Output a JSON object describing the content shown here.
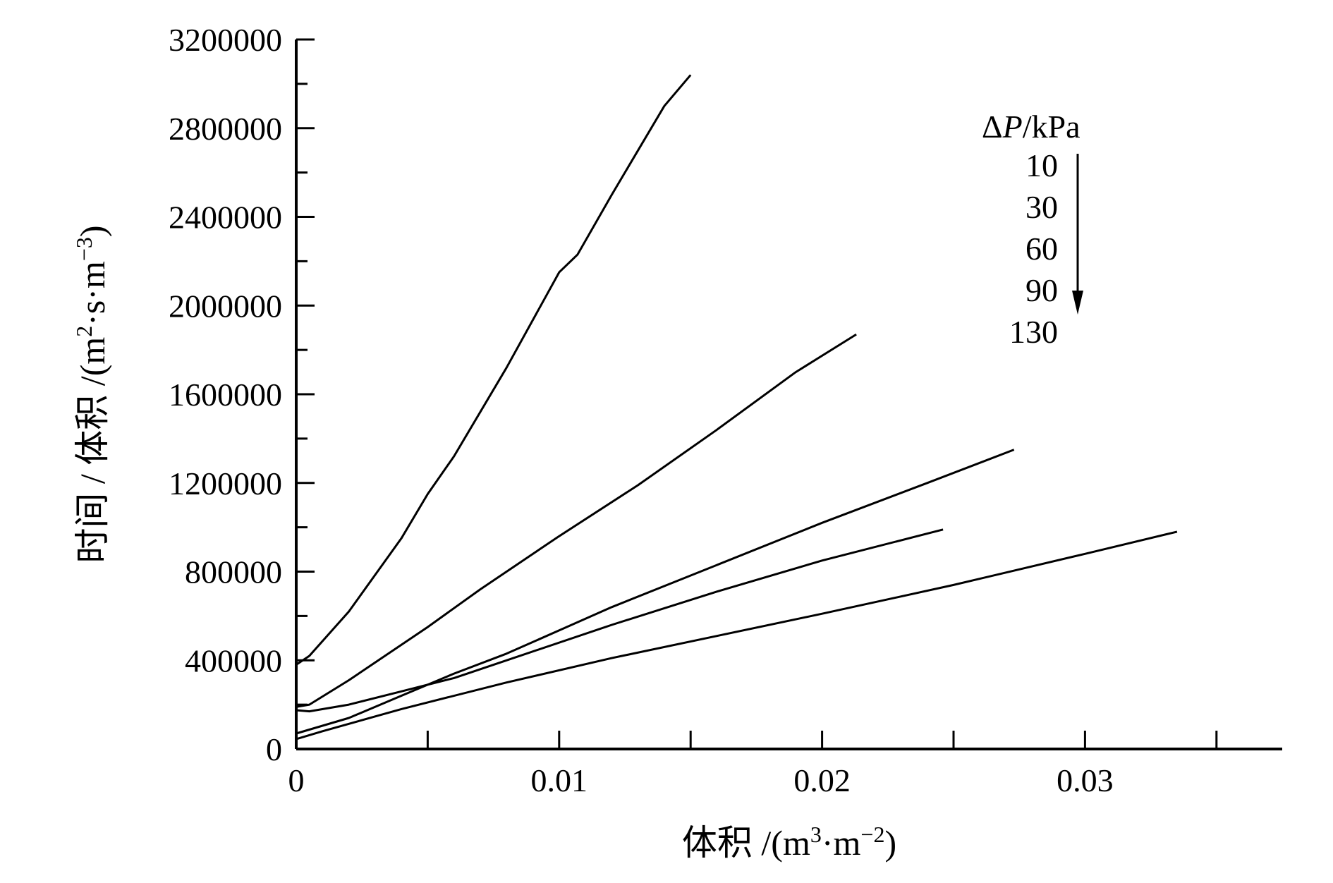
{
  "chart_data": {
    "type": "line",
    "xlabel": "体积 /(m³·m⁻²)",
    "xlabel_parts": {
      "base": "体积 /(m",
      "sup1": "3",
      "mid": "·m",
      "sup2": "−2",
      "end": ")"
    },
    "ylabel": "时间 / 体积 /(m²·s·m⁻³)",
    "ylabel_parts": {
      "base": "时间 / 体积 /(m",
      "sup1": "2",
      "mid": "·s·m",
      "sup2": "−3",
      "end": ")"
    },
    "xlim": [
      0,
      0.0375
    ],
    "ylim": [
      0,
      3200000
    ],
    "x_ticks": [
      0,
      0.005,
      0.01,
      0.015,
      0.02,
      0.025,
      0.03,
      0.035
    ],
    "x_tick_labels": [
      {
        "value": 0,
        "label": "0"
      },
      {
        "value": 0.01,
        "label": "0.01"
      },
      {
        "value": 0.02,
        "label": "0.02"
      },
      {
        "value": 0.03,
        "label": "0.03"
      }
    ],
    "y_ticks": [
      0,
      200000,
      400000,
      600000,
      800000,
      1000000,
      1200000,
      1400000,
      1600000,
      1800000,
      2000000,
      2200000,
      2400000,
      2600000,
      2800000,
      3000000,
      3200000
    ],
    "y_tick_labels": [
      {
        "value": 0,
        "label": "0"
      },
      {
        "value": 400000,
        "label": "400000"
      },
      {
        "value": 800000,
        "label": "800000"
      },
      {
        "value": 1200000,
        "label": "1200000"
      },
      {
        "value": 1600000,
        "label": "1600000"
      },
      {
        "value": 2000000,
        "label": "2000000"
      },
      {
        "value": 2400000,
        "label": "2400000"
      },
      {
        "value": 2800000,
        "label": "2800000"
      },
      {
        "value": 3200000,
        "label": "3200000"
      }
    ],
    "grid": false,
    "legend": {
      "placement": "top-right",
      "title_italic": "P",
      "title_prefix": "Δ",
      "title_suffix": "/kPa",
      "entries": [
        "10",
        "30",
        "60",
        "90",
        "130"
      ],
      "arrow": "down"
    },
    "series": [
      {
        "pressure": "10",
        "x": [
          0,
          0.0005,
          0.002,
          0.004,
          0.005,
          0.006,
          0.008,
          0.01,
          0.0107,
          0.012,
          0.014,
          0.015
        ],
        "y": [
          380000,
          420000,
          620000,
          950000,
          1150000,
          1320000,
          1720000,
          2150000,
          2230000,
          2500000,
          2900000,
          3040000
        ]
      },
      {
        "pressure": "30",
        "x": [
          0,
          0.0005,
          0.002,
          0.005,
          0.007,
          0.01,
          0.013,
          0.016,
          0.019,
          0.0213
        ],
        "y": [
          190000,
          200000,
          310000,
          550000,
          720000,
          960000,
          1190000,
          1440000,
          1700000,
          1870000
        ]
      },
      {
        "pressure": "60",
        "x": [
          0,
          0.002,
          0.004,
          0.006,
          0.008,
          0.012,
          0.016,
          0.02,
          0.024,
          0.0273
        ],
        "y": [
          70000,
          140000,
          240000,
          340000,
          430000,
          640000,
          830000,
          1020000,
          1200000,
          1350000
        ]
      },
      {
        "pressure": "90",
        "x": [
          0,
          0.0005,
          0.002,
          0.004,
          0.006,
          0.008,
          0.012,
          0.016,
          0.02,
          0.0246
        ],
        "y": [
          175000,
          170000,
          200000,
          260000,
          320000,
          400000,
          560000,
          710000,
          850000,
          990000
        ]
      },
      {
        "pressure": "130",
        "x": [
          0,
          0.001,
          0.004,
          0.008,
          0.012,
          0.016,
          0.02,
          0.025,
          0.03,
          0.0335
        ],
        "y": [
          45000,
          80000,
          180000,
          300000,
          410000,
          510000,
          610000,
          740000,
          880000,
          980000
        ]
      }
    ]
  }
}
